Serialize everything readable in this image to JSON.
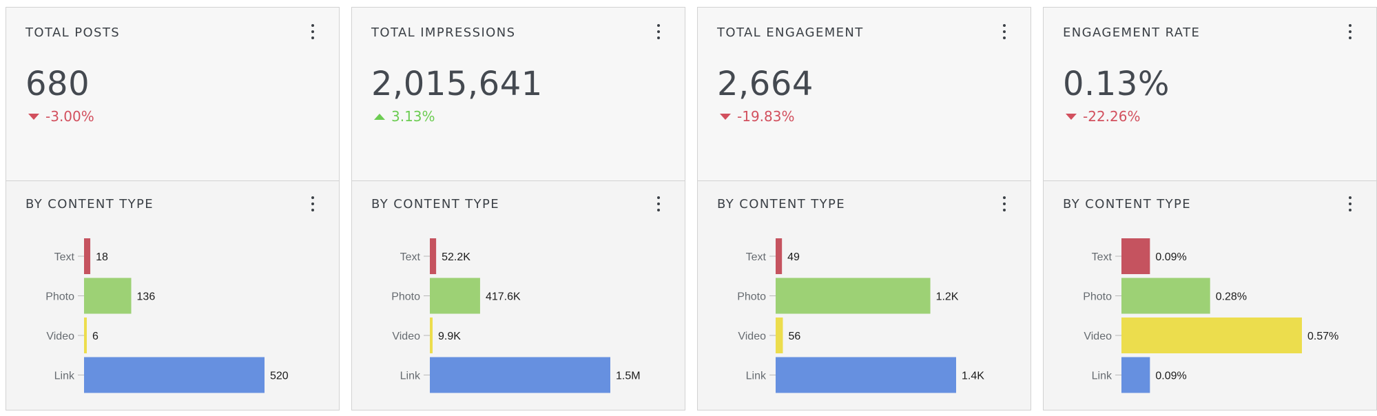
{
  "colors": {
    "text": "#c5535f",
    "photo": "#9dd175",
    "video": "#ecdd4d",
    "link": "#6690e0",
    "negative": "#d2505e",
    "positive": "#6ccc52"
  },
  "cards": [
    {
      "title": "TOTAL POSTS",
      "value": "680",
      "delta": "-3.00%",
      "trend": "down",
      "breakdown_title": "BY CONTENT TYPE",
      "chart_data": {
        "type": "bar",
        "orientation": "horizontal",
        "categories": [
          "Text",
          "Photo",
          "Video",
          "Link"
        ],
        "values": [
          18,
          136,
          6,
          520
        ],
        "labels": [
          "18",
          "136",
          "6",
          "520"
        ]
      }
    },
    {
      "title": "TOTAL IMPRESSIONS",
      "value": "2,015,641",
      "delta": "3.13%",
      "trend": "up",
      "breakdown_title": "BY CONTENT TYPE",
      "chart_data": {
        "type": "bar",
        "orientation": "horizontal",
        "categories": [
          "Text",
          "Photo",
          "Video",
          "Link"
        ],
        "values": [
          52200,
          417600,
          9900,
          1500000
        ],
        "labels": [
          "52.2K",
          "417.6K",
          "9.9K",
          "1.5M"
        ]
      }
    },
    {
      "title": "TOTAL ENGAGEMENT",
      "value": "2,664",
      "delta": "-19.83%",
      "trend": "down",
      "breakdown_title": "BY CONTENT TYPE",
      "chart_data": {
        "type": "bar",
        "orientation": "horizontal",
        "categories": [
          "Text",
          "Photo",
          "Video",
          "Link"
        ],
        "values": [
          49,
          1200,
          56,
          1400
        ],
        "labels": [
          "49",
          "1.2K",
          "56",
          "1.4K"
        ]
      }
    },
    {
      "title": "ENGAGEMENT RATE",
      "value": "0.13%",
      "delta": "-22.26%",
      "trend": "down",
      "breakdown_title": "BY CONTENT TYPE",
      "chart_data": {
        "type": "bar",
        "orientation": "horizontal",
        "categories": [
          "Text",
          "Photo",
          "Video",
          "Link"
        ],
        "values": [
          0.09,
          0.28,
          0.57,
          0.09
        ],
        "labels": [
          "0.09%",
          "0.28%",
          "0.57%",
          "0.09%"
        ]
      }
    }
  ]
}
